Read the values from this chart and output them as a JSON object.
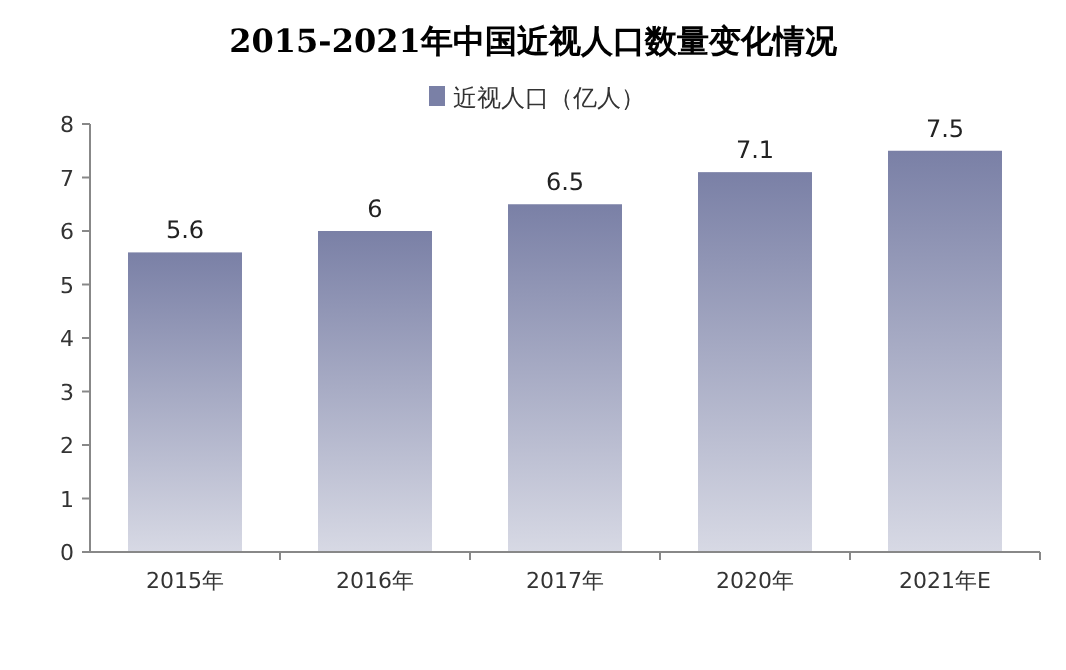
{
  "chart_data": {
    "type": "bar",
    "title": "2015-2021年中国近视人口数量变化情况",
    "categories": [
      "2015年",
      "2016年",
      "2017年",
      "2020年",
      "2021年E"
    ],
    "series": [
      {
        "name": "近视人口（亿人）",
        "color": "#7a80a6",
        "values": [
          5.6,
          6,
          6.5,
          7.1,
          7.5
        ]
      }
    ],
    "ylim": [
      0,
      8
    ],
    "yticks": [
      0,
      1,
      2,
      3,
      4,
      5,
      6,
      7,
      8
    ],
    "data_labels": true,
    "legend": "top",
    "grid": false
  }
}
